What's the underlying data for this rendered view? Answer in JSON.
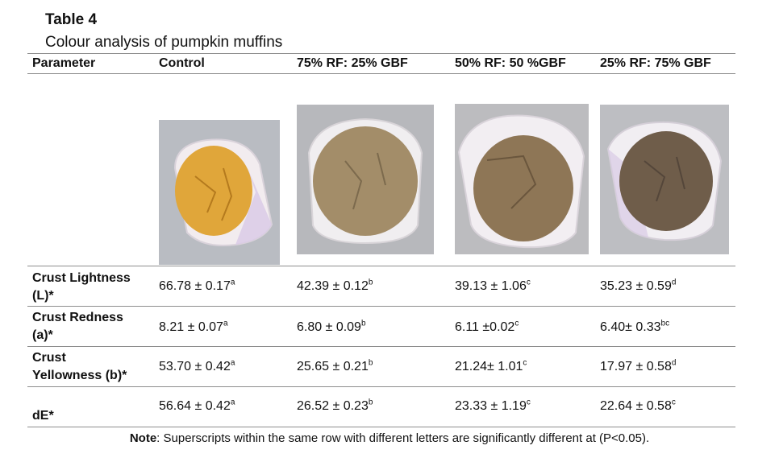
{
  "table": {
    "title": "Table 4",
    "subtitle": "Colour analysis of pumpkin muffins",
    "headers": [
      "Parameter",
      "Control",
      "75% RF: 25% GBF",
      "50% RF: 50 %GBF",
      "25% RF: 75% GBF"
    ],
    "photos": [
      {
        "name": "control-muffin-photo",
        "crust_color": "#e0a63a"
      },
      {
        "name": "muffin-75rf-photo",
        "crust_color": "#a38d69"
      },
      {
        "name": "muffin-50rf-photo",
        "crust_color": "#8e7656"
      },
      {
        "name": "muffin-25rf-photo",
        "crust_color": "#6f5d4a"
      }
    ],
    "rows": [
      {
        "param_line1": "Crust Lightness",
        "param_line2": "(L)*",
        "cells": [
          {
            "v": "66.78 ± 0.17",
            "s": "a"
          },
          {
            "v": "42.39 ± 0.12",
            "s": "b"
          },
          {
            "v": "39.13 ± 1.06",
            "s": "c"
          },
          {
            "v": "35.23 ± 0.59",
            "s": "d"
          }
        ]
      },
      {
        "param_line1": "Crust Redness",
        "param_line2": "(a)*",
        "cells": [
          {
            "v": "8.21 ± 0.07",
            "s": "a"
          },
          {
            "v": "6.80 ± 0.09",
            "s": "b"
          },
          {
            "v": "6.11 ±0.02",
            "s": "c"
          },
          {
            "v": "6.40± 0.33",
            "s": "bc"
          }
        ]
      },
      {
        "param_line1": "Crust",
        "param_line2": "Yellowness (b)*",
        "cells": [
          {
            "v": "53.70 ± 0.42",
            "s": "a"
          },
          {
            "v": "25.65 ± 0.21",
            "s": "b"
          },
          {
            "v": "21.24± 1.01",
            "s": "c"
          },
          {
            "v": "17.97 ± 0.58",
            "s": "d"
          }
        ]
      },
      {
        "param_line1": "",
        "param_line2": "dE*",
        "cells": [
          {
            "v": "56.64 ± 0.42",
            "s": "a"
          },
          {
            "v": "26.52 ± 0.23",
            "s": "b"
          },
          {
            "v": "23.33 ± 1.19",
            "s": "c"
          },
          {
            "v": "22.64 ± 0.58",
            "s": "c"
          }
        ]
      }
    ],
    "note_label": "Note",
    "note_text": ": Superscripts within the same row with different letters are significantly different at (P<0.05)."
  }
}
